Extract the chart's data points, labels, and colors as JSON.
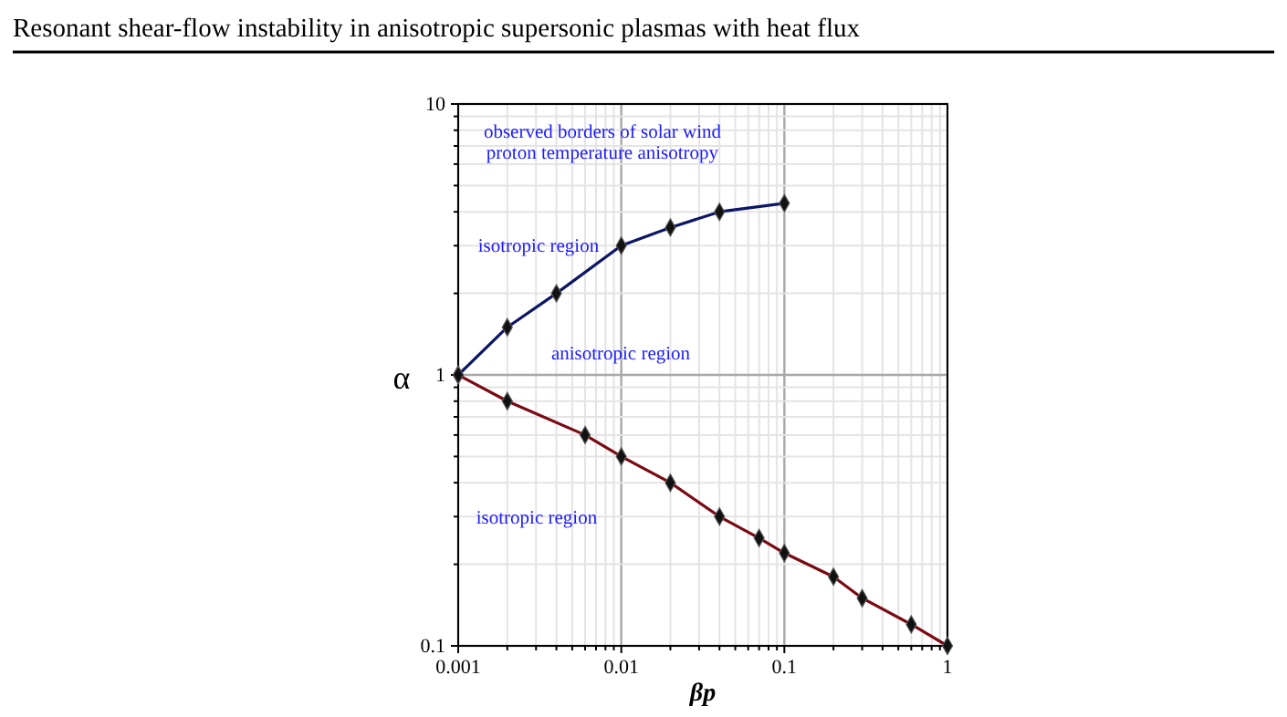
{
  "chart_data": {
    "type": "line",
    "title": "Resonant shear-flow instability in anisotropic supersonic plasmas with heat flux",
    "xlabel": "βp",
    "ylabel": "α",
    "log": "xy",
    "grid": true,
    "marker": "diamond",
    "line_style": "solid",
    "xlim": [
      0.001,
      1
    ],
    "ylim": [
      0.1,
      10
    ],
    "xticks": [
      0.001,
      {
        "value": 0.002,
        "label": null
      },
      {
        "value": 0.003,
        "label": null
      },
      {
        "value": 0.004,
        "label": null
      },
      {
        "value": 0.005,
        "label": null
      },
      {
        "value": 0.006,
        "label": null
      },
      {
        "value": 0.007,
        "label": null
      },
      {
        "value": 0.008,
        "label": null
      },
      {
        "value": 0.009,
        "label": null
      },
      0.01,
      {
        "value": 0.02,
        "label": null
      },
      {
        "value": 0.03,
        "label": null
      },
      {
        "value": 0.04,
        "label": null
      },
      {
        "value": 0.05,
        "label": null
      },
      {
        "value": 0.06,
        "label": null
      },
      {
        "value": 0.07,
        "label": null
      },
      {
        "value": 0.08,
        "label": null
      },
      {
        "value": 0.09,
        "label": null
      },
      0.1,
      {
        "value": 0.2,
        "label": null
      },
      {
        "value": 0.3,
        "label": null
      },
      {
        "value": 0.4,
        "label": null
      },
      {
        "value": 0.5,
        "label": null
      },
      {
        "value": 0.6,
        "label": null
      },
      {
        "value": 0.7,
        "label": null
      },
      {
        "value": 0.8,
        "label": null
      },
      {
        "value": 0.9,
        "label": null
      },
      1
    ],
    "yticks": [
      0.1,
      {
        "value": 0.2,
        "label": null
      },
      {
        "value": 0.3,
        "label": null
      },
      {
        "value": 0.4,
        "label": null
      },
      {
        "value": 0.5,
        "label": null
      },
      {
        "value": 0.6,
        "label": null
      },
      {
        "value": 0.7,
        "label": null
      },
      {
        "value": 0.8,
        "label": null
      },
      {
        "value": 0.9,
        "label": null
      },
      1,
      {
        "value": 2,
        "label": null
      },
      {
        "value": 3,
        "label": null
      },
      {
        "value": 4,
        "label": null
      },
      {
        "value": 5,
        "label": null
      },
      {
        "value": 6,
        "label": null
      },
      {
        "value": 7,
        "label": null
      },
      {
        "value": 8,
        "label": null
      },
      {
        "value": 9,
        "label": null
      },
      10
    ],
    "series": [
      {
        "color": "#0d1566",
        "x": [
          0.001,
          0.002,
          0.004,
          0.01,
          0.02,
          0.04,
          0.1
        ],
        "values": [
          1,
          1.5,
          2,
          3,
          3.5,
          4,
          4.3
        ]
      },
      {
        "color": "#7a0a14",
        "x": [
          0.001,
          0.002,
          0.006,
          0.01,
          0.02,
          0.04,
          0.07,
          0.1,
          0.2,
          0.3,
          0.6,
          1
        ],
        "values": [
          1,
          0.8,
          0.6,
          0.5,
          0.4,
          0.3,
          0.25,
          0.22,
          0.18,
          0.15,
          0.12,
          0.1
        ]
      }
    ],
    "annotations": [
      "observed borders of solar wind\nproton temperature anisotropy",
      "isotropic region",
      "anisotropic region",
      "isotropic region"
    ]
  }
}
